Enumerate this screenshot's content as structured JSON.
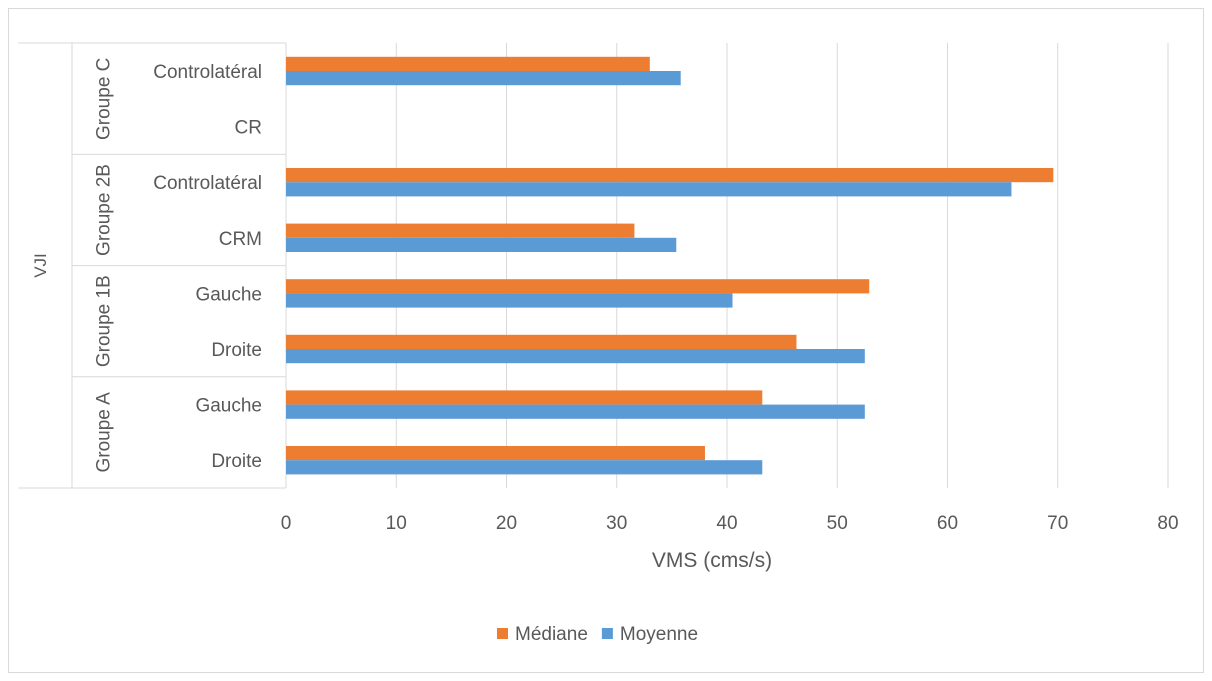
{
  "chart_data": {
    "type": "bar",
    "orientation": "horizontal",
    "outer_group_label": "VJI",
    "groups": [
      {
        "name": "Groupe A",
        "categories": [
          "Droite",
          "Gauche"
        ]
      },
      {
        "name": "Groupe 1B",
        "categories": [
          "Droite",
          "Gauche"
        ]
      },
      {
        "name": "Groupe 2B",
        "categories": [
          "CRM",
          "Controlatéral"
        ]
      },
      {
        "name": "Groupe C",
        "categories": [
          "CR",
          "Controlatéral"
        ]
      }
    ],
    "series": [
      {
        "name": "Médiane",
        "color": "#ED7D31",
        "values": [
          38,
          43.2,
          46.3,
          52.9,
          31.6,
          69.6,
          null,
          33
        ]
      },
      {
        "name": "Moyenne",
        "color": "#5B9BD5",
        "values": [
          43.2,
          52.5,
          52.5,
          40.5,
          35.4,
          65.8,
          null,
          35.8
        ]
      }
    ],
    "xlabel": "VMS (cms/s)",
    "xlim": [
      0,
      80
    ],
    "xticks": [
      0,
      10,
      20,
      30,
      40,
      50,
      60,
      70,
      80
    ],
    "grid": true,
    "legend_position": "bottom"
  }
}
